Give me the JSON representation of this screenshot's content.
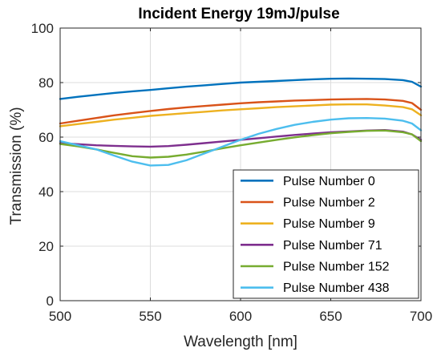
{
  "chart_data": {
    "type": "line",
    "title": "Incident Energy 19mJ/pulse",
    "xlabel": "Wavelength [nm]",
    "ylabel": "Transmission (%)",
    "xlim": [
      500,
      700
    ],
    "ylim": [
      0,
      100
    ],
    "xticks": [
      500,
      550,
      600,
      650,
      700
    ],
    "yticks": [
      0,
      20,
      40,
      60,
      80,
      100
    ],
    "grid": true,
    "legend_position": "bottom-right",
    "series": [
      {
        "name": "Pulse Number 0",
        "color": "#0072BD",
        "x": [
          500,
          510,
          520,
          530,
          540,
          550,
          560,
          570,
          580,
          590,
          600,
          610,
          620,
          630,
          640,
          650,
          660,
          670,
          680,
          690,
          695,
          700
        ],
        "y": [
          74,
          74.8,
          75.5,
          76.2,
          76.8,
          77.3,
          77.9,
          78.5,
          79,
          79.5,
          80,
          80.3,
          80.6,
          80.9,
          81.2,
          81.4,
          81.5,
          81.4,
          81.3,
          80.9,
          80.3,
          78.5
        ]
      },
      {
        "name": "Pulse Number 2",
        "color": "#D95319",
        "x": [
          500,
          510,
          520,
          530,
          540,
          550,
          560,
          570,
          580,
          590,
          600,
          610,
          620,
          630,
          640,
          650,
          660,
          670,
          680,
          690,
          695,
          700
        ],
        "y": [
          65,
          66,
          67,
          68,
          68.8,
          69.6,
          70.3,
          70.9,
          71.4,
          71.9,
          72.4,
          72.8,
          73.1,
          73.4,
          73.6,
          73.8,
          73.9,
          74,
          73.8,
          73.3,
          72.5,
          70
        ]
      },
      {
        "name": "Pulse Number 9",
        "color": "#EDB120",
        "x": [
          500,
          510,
          520,
          530,
          540,
          550,
          560,
          570,
          580,
          590,
          600,
          610,
          620,
          630,
          640,
          650,
          660,
          670,
          680,
          690,
          695,
          700
        ],
        "y": [
          64,
          64.8,
          65.6,
          66.4,
          67.1,
          67.8,
          68.3,
          68.8,
          69.3,
          69.8,
          70.2,
          70.6,
          71,
          71.3,
          71.6,
          71.9,
          72,
          72,
          71.6,
          71,
          70.2,
          68
        ]
      },
      {
        "name": "Pulse Number 71",
        "color": "#7E2F8E",
        "x": [
          500,
          510,
          520,
          530,
          540,
          550,
          560,
          570,
          580,
          590,
          600,
          610,
          620,
          630,
          640,
          650,
          660,
          670,
          680,
          690,
          695,
          700
        ],
        "y": [
          57.8,
          57.4,
          57,
          56.8,
          56.6,
          56.5,
          56.7,
          57.2,
          57.8,
          58.4,
          59,
          59.6,
          60.2,
          60.8,
          61.3,
          61.8,
          62.1,
          62.4,
          62.6,
          62,
          61,
          59
        ]
      },
      {
        "name": "Pulse Number 152",
        "color": "#77AC30",
        "x": [
          500,
          510,
          520,
          530,
          540,
          550,
          560,
          570,
          580,
          590,
          600,
          610,
          620,
          630,
          640,
          650,
          660,
          670,
          680,
          690,
          695,
          700
        ],
        "y": [
          57.5,
          56.6,
          55.5,
          54.2,
          53,
          52.5,
          52.8,
          53.6,
          54.7,
          55.9,
          57,
          58,
          59,
          59.9,
          60.7,
          61.4,
          61.9,
          62.3,
          62.4,
          61.8,
          61,
          58.5
        ]
      },
      {
        "name": "Pulse Number 438",
        "color": "#4DBEEE",
        "x": [
          500,
          510,
          520,
          530,
          540,
          550,
          560,
          570,
          580,
          590,
          600,
          610,
          620,
          630,
          640,
          650,
          660,
          670,
          680,
          690,
          695,
          700
        ],
        "y": [
          58.5,
          57,
          55.5,
          53.2,
          51,
          49.6,
          49.8,
          51.5,
          54,
          56.5,
          59,
          61.2,
          63,
          64.5,
          65.6,
          66.4,
          66.9,
          67,
          66.8,
          66,
          65,
          62.5
        ]
      }
    ]
  }
}
